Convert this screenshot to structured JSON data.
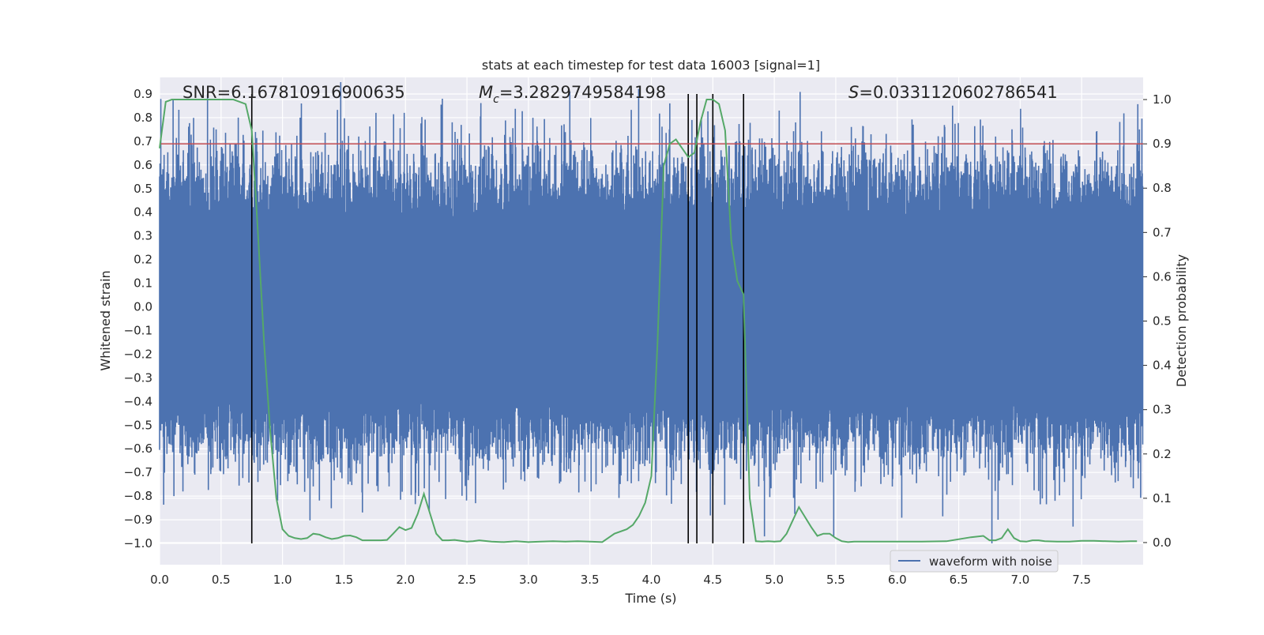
{
  "chart_data": {
    "type": "line",
    "title": "stats at each timestep for test data 16003 [signal=1]",
    "xlabel": "Time (s)",
    "ylabel_left": "Whitened strain",
    "ylabel_right": "Detection probability",
    "xlim": [
      0.0,
      8.0
    ],
    "ylim_left": [
      -1.09,
      0.97
    ],
    "ylim_right": [
      -0.05,
      1.05
    ],
    "x_ticks": [
      "0.0",
      "0.5",
      "1.0",
      "1.5",
      "2.0",
      "2.5",
      "3.0",
      "3.5",
      "4.0",
      "4.5",
      "5.0",
      "5.5",
      "6.0",
      "6.5",
      "7.0",
      "7.5"
    ],
    "y_ticks_left": [
      "0.9",
      "0.8",
      "0.7",
      "0.6",
      "0.5",
      "0.4",
      "0.3",
      "0.2",
      "0.1",
      "0.0",
      "−0.1",
      "−0.2",
      "−0.3",
      "−0.4",
      "−0.5",
      "−0.6",
      "−0.7",
      "−0.8",
      "−0.9",
      "−1.0"
    ],
    "y_ticks_right": [
      "1.0",
      "0.9",
      "0.8",
      "0.7",
      "0.6",
      "0.5",
      "0.4",
      "0.3",
      "0.2",
      "0.1",
      "0.0"
    ],
    "grid": true,
    "legend_position": "lower-right",
    "annotations": {
      "snr": "SNR=6.167810916900635",
      "mc_symbol": "M",
      "mc_subscript": "c",
      "mc_value": "=3.2829749584198",
      "s_symbol": "S",
      "s_value": "=0.0331120602786541"
    },
    "threshold": {
      "value": 0.9,
      "axis": "right",
      "color": "#c44e52"
    },
    "vertical_lines": [
      0.75,
      4.3,
      4.37,
      4.5,
      4.75
    ],
    "series": [
      {
        "name": "waveform with noise",
        "axis": "left",
        "color": "#4c72b0",
        "envelope": {
          "lower": -0.4,
          "upper": 0.38,
          "std": 0.16
        },
        "spikes": [
          {
            "x": 0.18,
            "y": 0.5
          },
          {
            "x": 0.19,
            "y": -0.63
          },
          {
            "x": 0.19,
            "y": -0.78
          },
          {
            "x": 0.39,
            "y": 0.9
          },
          {
            "x": 0.42,
            "y": -0.55
          },
          {
            "x": 0.46,
            "y": 0.75
          },
          {
            "x": 0.64,
            "y": 0.8
          },
          {
            "x": 0.8,
            "y": -0.74
          },
          {
            "x": 1.47,
            "y": -0.7
          },
          {
            "x": 1.6,
            "y": -0.58
          },
          {
            "x": 1.62,
            "y": 0.72
          },
          {
            "x": 1.86,
            "y": -0.7
          },
          {
            "x": 1.99,
            "y": 0.82
          },
          {
            "x": 2.2,
            "y": -0.67
          },
          {
            "x": 2.3,
            "y": 0.88
          },
          {
            "x": 2.38,
            "y": 0.78
          },
          {
            "x": 2.57,
            "y": -0.83
          },
          {
            "x": 3.55,
            "y": -0.75
          },
          {
            "x": 3.82,
            "y": -0.6
          },
          {
            "x": 4.15,
            "y": 0.86
          },
          {
            "x": 4.33,
            "y": 0.79
          },
          {
            "x": 4.72,
            "y": 0.7
          },
          {
            "x": 5.18,
            "y": -0.73
          },
          {
            "x": 6.13,
            "y": 0.77
          },
          {
            "x": 6.3,
            "y": 0.68
          },
          {
            "x": 6.77,
            "y": -1.0
          },
          {
            "x": 6.8,
            "y": 0.72
          },
          {
            "x": 7.36,
            "y": -0.74
          },
          {
            "x": 7.9,
            "y": -0.72
          },
          {
            "x": 7.97,
            "y": 0.75
          }
        ]
      },
      {
        "name": "detection probability",
        "axis": "right",
        "color": "#55a868",
        "x": [
          0.0,
          0.05,
          0.1,
          0.2,
          0.3,
          0.4,
          0.5,
          0.6,
          0.7,
          0.75,
          0.8,
          0.85,
          0.9,
          0.95,
          1.0,
          1.05,
          1.1,
          1.15,
          1.2,
          1.25,
          1.3,
          1.35,
          1.4,
          1.45,
          1.5,
          1.55,
          1.6,
          1.65,
          1.7,
          1.75,
          1.8,
          1.85,
          1.9,
          1.95,
          2.0,
          2.05,
          2.1,
          2.15,
          2.2,
          2.25,
          2.3,
          2.35,
          2.4,
          2.45,
          2.5,
          2.55,
          2.6,
          2.7,
          2.8,
          2.9,
          3.0,
          3.1,
          3.2,
          3.3,
          3.4,
          3.5,
          3.6,
          3.7,
          3.8,
          3.85,
          3.9,
          3.95,
          4.0,
          4.05,
          4.1,
          4.15,
          4.2,
          4.25,
          4.3,
          4.35,
          4.4,
          4.45,
          4.5,
          4.55,
          4.6,
          4.65,
          4.7,
          4.75,
          4.8,
          4.85,
          4.9,
          4.95,
          5.0,
          5.05,
          5.1,
          5.2,
          5.3,
          5.35,
          5.4,
          5.45,
          5.5,
          5.55,
          5.6,
          5.65,
          5.7,
          5.75,
          5.8,
          5.85,
          5.9,
          6.0,
          6.2,
          6.4,
          6.6,
          6.7,
          6.75,
          6.8,
          6.85,
          6.9,
          6.95,
          7.0,
          7.05,
          7.1,
          7.15,
          7.2,
          7.3,
          7.4,
          7.5,
          7.6,
          7.7,
          7.8,
          7.9,
          7.95
        ],
        "y": [
          0.89,
          0.995,
          1.0,
          1.0,
          1.0,
          1.0,
          1.0,
          1.0,
          0.99,
          0.93,
          0.7,
          0.45,
          0.25,
          0.1,
          0.03,
          0.015,
          0.01,
          0.008,
          0.01,
          0.02,
          0.018,
          0.012,
          0.008,
          0.01,
          0.015,
          0.016,
          0.012,
          0.005,
          0.005,
          0.005,
          0.005,
          0.006,
          0.02,
          0.035,
          0.028,
          0.033,
          0.065,
          0.11,
          0.065,
          0.02,
          0.005,
          0.005,
          0.006,
          0.004,
          0.002,
          0.003,
          0.005,
          0.002,
          0.001,
          0.003,
          0.001,
          0.002,
          0.003,
          0.002,
          0.003,
          0.002,
          0.001,
          0.02,
          0.03,
          0.04,
          0.06,
          0.09,
          0.15,
          0.45,
          0.85,
          0.9,
          0.91,
          0.89,
          0.87,
          0.88,
          0.95,
          1.0,
          1.0,
          0.99,
          0.93,
          0.68,
          0.59,
          0.56,
          0.1,
          0.003,
          0.002,
          0.003,
          0.002,
          0.003,
          0.02,
          0.08,
          0.035,
          0.015,
          0.02,
          0.02,
          0.01,
          0.003,
          0.001,
          0.002,
          0.002,
          0.002,
          0.002,
          0.002,
          0.002,
          0.002,
          0.002,
          0.003,
          0.012,
          0.015,
          0.005,
          0.005,
          0.01,
          0.03,
          0.01,
          0.003,
          0.002,
          0.005,
          0.005,
          0.003,
          0.002,
          0.002,
          0.004,
          0.004,
          0.003,
          0.002,
          0.003,
          0.003
        ]
      }
    ]
  }
}
